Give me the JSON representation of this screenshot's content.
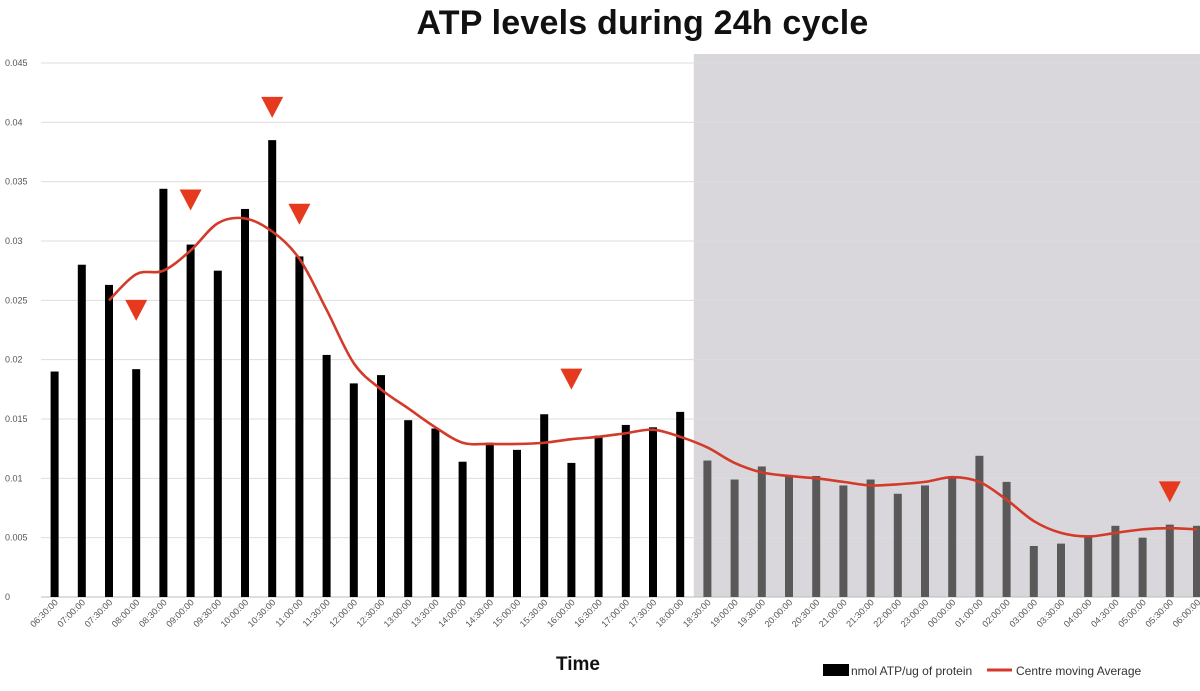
{
  "chart_data": {
    "type": "bar",
    "title": "ATP levels during 24h cycle",
    "xlabel": "Time",
    "ylabel": "",
    "ylim": [
      0,
      0.045
    ],
    "yticks": [
      0,
      0.005,
      0.01,
      0.015,
      0.02,
      0.025,
      0.03,
      0.035,
      0.04,
      0.045
    ],
    "ytick_labels": [
      "0",
      "0.005",
      "0.01",
      "0.015",
      "0.02",
      "0.025",
      "0.03",
      "0.035",
      "0.04",
      "0.045"
    ],
    "grid": true,
    "legend_position": "bottom-right",
    "categories": [
      "06:30:00",
      "07:00:00",
      "07:30:00",
      "08:00:00",
      "08:30:00",
      "09:00:00",
      "09:30:00",
      "10:00:00",
      "10:30:00",
      "11:00:00",
      "11:30:00",
      "12:00:00",
      "12:30:00",
      "13:00:00",
      "13:30:00",
      "14:00:00",
      "14:30:00",
      "15:00:00",
      "15:30:00",
      "16:00:00",
      "16:30:00",
      "17:00:00",
      "17:30:00",
      "18:00:00",
      "18:30:00",
      "19:00:00",
      "19:30:00",
      "20:00:00",
      "20:30:00",
      "21:00:00",
      "21:30:00",
      "22:00:00",
      "23:00:00",
      "00:00:00",
      "01:00:00",
      "02:00:00",
      "03:00:00",
      "03:30:00",
      "04:00:00",
      "04:30:00",
      "05:00:00",
      "05:30:00",
      "06:00:00"
    ],
    "series": [
      {
        "name": "nmol ATP/ug of protein",
        "type": "bar",
        "values": [
          0.019,
          0.028,
          0.0263,
          0.0192,
          0.0344,
          0.0297,
          0.0275,
          0.0327,
          0.0385,
          0.0287,
          0.0204,
          0.018,
          0.0187,
          0.0149,
          0.0142,
          0.0114,
          0.013,
          0.0124,
          0.0154,
          0.0113,
          0.0136,
          0.0145,
          0.0143,
          0.0156,
          0.0115,
          0.0099,
          0.011,
          0.0102,
          0.0102,
          0.0094,
          0.0099,
          0.0087,
          0.0094,
          0.0101,
          0.0119,
          0.0097,
          0.0043,
          0.0045,
          0.0052,
          0.006,
          0.005,
          0.0061,
          0.006
        ]
      },
      {
        "name": "Centre moving Average",
        "type": "line",
        "values": [
          null,
          null,
          0.025,
          0.0272,
          0.0275,
          0.0292,
          0.0315,
          0.0319,
          0.0308,
          0.0285,
          0.0242,
          0.0197,
          0.0175,
          0.0159,
          0.0143,
          0.013,
          0.0129,
          0.0129,
          0.013,
          0.0133,
          0.0135,
          0.0138,
          0.0141,
          0.0135,
          0.0126,
          0.0113,
          0.0105,
          0.0102,
          0.01,
          0.0097,
          0.0094,
          0.0095,
          0.0097,
          0.0101,
          0.0097,
          0.0082,
          0.0064,
          0.0054,
          0.0051,
          0.0054,
          0.0057,
          0.0058,
          0.0057
        ]
      }
    ],
    "night_region": {
      "start_category": "18:30:00",
      "end_category": "06:00:00"
    },
    "annotations": {
      "type": "red-down-triangle",
      "markers": [
        {
          "category": "08:00:00",
          "y": 0.0242
        },
        {
          "category": "09:00:00",
          "y": 0.0335
        },
        {
          "category": "10:30:00",
          "y": 0.0413
        },
        {
          "category": "11:00:00",
          "y": 0.0323
        },
        {
          "category": "16:00:00",
          "y": 0.0184
        },
        {
          "category": "05:30:00",
          "y": 0.0089
        }
      ]
    },
    "colors": {
      "bar_day": "#000000",
      "bar_night": "#595959",
      "line": "#d33a2a",
      "marker": "#e63a1e",
      "night_bg": "#d9d7db",
      "grid": "#dddddd"
    }
  }
}
